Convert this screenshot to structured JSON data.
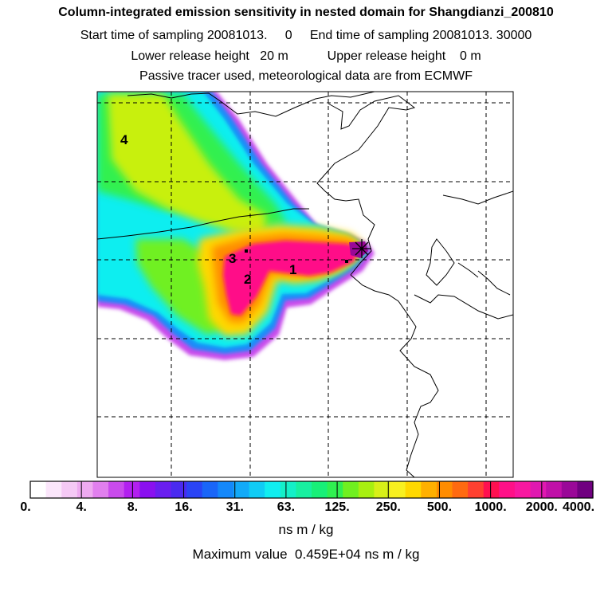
{
  "header": {
    "title": "Column-integrated emission sensitivity in nested domain for Shangdianzi_200810",
    "sampling_line": "Start time of sampling 20081013.     0     End time of sampling 20081013. 30000",
    "release_line": "Lower release height   20 m           Upper release height    0 m",
    "source_line": "Passive tracer used, meteorological data are from ECMWF"
  },
  "map": {
    "station_labels": [
      "1",
      "2",
      "3",
      "4"
    ]
  },
  "colorbar": {
    "colors": [
      "#ffffff",
      "#fbe6fb",
      "#f5c9f5",
      "#eeaaf0",
      "#e17fee",
      "#c94bec",
      "#b220f0",
      "#8a10f0",
      "#6a1ef0",
      "#4a2af0",
      "#2a44f5",
      "#1a66f8",
      "#1488fa",
      "#12aaf8",
      "#10ccf5",
      "#10eef0",
      "#14f0c8",
      "#18f0a0",
      "#18f078",
      "#30f050",
      "#70f020",
      "#a8f010",
      "#d8f018",
      "#f8f020",
      "#ffd800",
      "#ffb000",
      "#ff8c00",
      "#ff6a10",
      "#ff4030",
      "#ff1050",
      "#ff1088",
      "#f818a0",
      "#e018b0",
      "#c010a8",
      "#9a0898",
      "#700080"
    ],
    "tick_labels": [
      "0.",
      "4.",
      "8.",
      "16.",
      "31.",
      "63.",
      "125.",
      "250.",
      "500.",
      "1000.",
      "2000.",
      "4000."
    ],
    "unit_label": "ns m / kg",
    "max_label": "Maximum value  0.459E+04 ns m / kg"
  },
  "colors": {
    "low_green": "#a8f010",
    "cyan": "#10eef0",
    "yellow": "#ffd800",
    "magenta_high": "#ff1088",
    "purple_edge": "#b220f0"
  }
}
